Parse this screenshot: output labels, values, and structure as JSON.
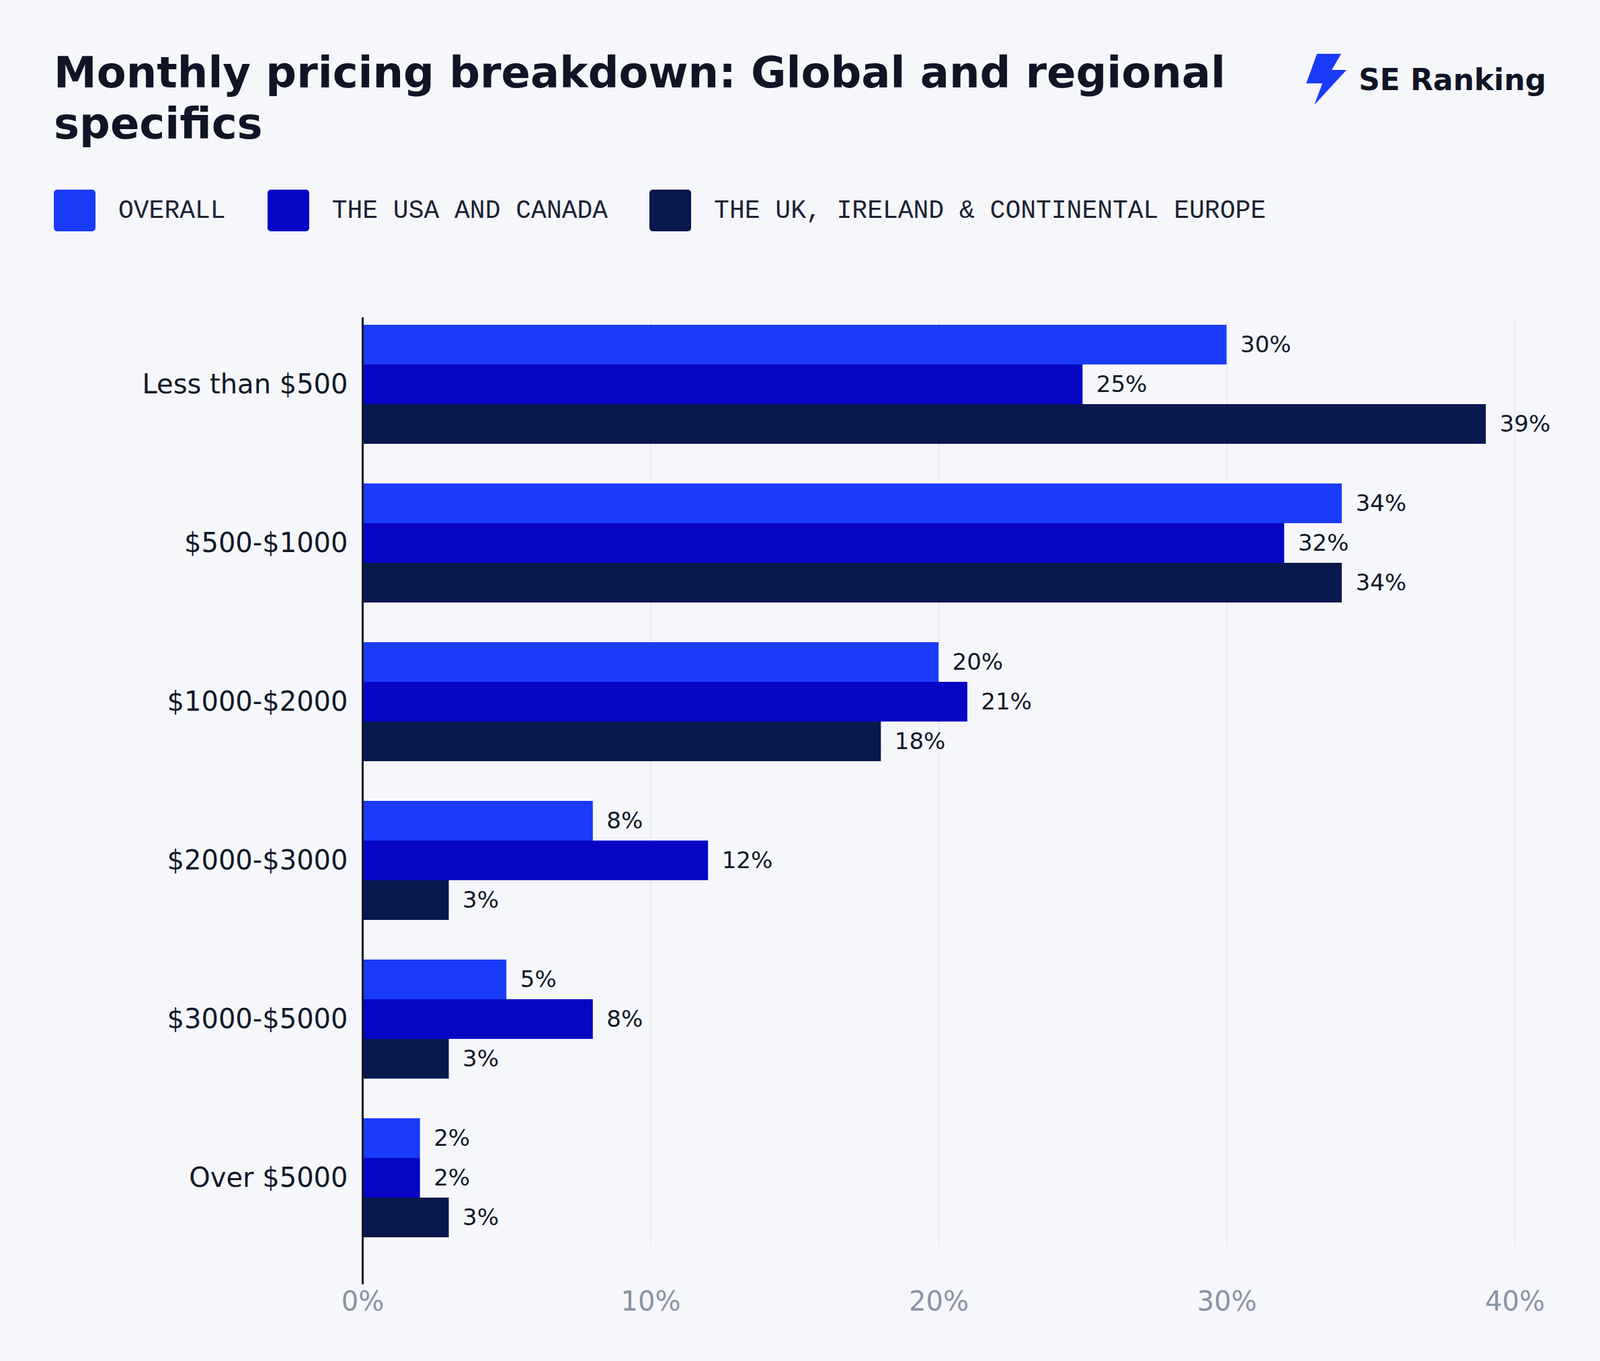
{
  "chart_data": {
    "type": "bar",
    "orientation": "horizontal",
    "title": "Monthly pricing breakdown: Global and regional specifics",
    "annotations": [
      "SE Ranking"
    ],
    "categories": [
      "Less than $500",
      "$500-$1000",
      "$1000-$2000",
      "$2000-$3000",
      "$3000-$5000",
      "Over $5000"
    ],
    "series": [
      {
        "name": "OVERALL",
        "color": "#1a3bfa",
        "values": [
          30,
          34,
          20,
          8,
          5,
          2
        ],
        "value_labels": [
          "30%",
          "34%",
          "20%",
          "8%",
          "5%",
          "2%"
        ]
      },
      {
        "name": "THE USA AND CANADA",
        "color": "#0606c4",
        "values": [
          25,
          32,
          21,
          12,
          8,
          2
        ],
        "value_labels": [
          "25%",
          "32%",
          "21%",
          "12%",
          "8%",
          "2%"
        ]
      },
      {
        "name": "THE UK, IRELAND & CONTINENTAL EUROPE",
        "color": "#08184d",
        "values": [
          39,
          34,
          18,
          3,
          3,
          3
        ],
        "value_labels": [
          "39%",
          "34%",
          "18%",
          "3%",
          "3%",
          "3%"
        ]
      }
    ],
    "xlim": [
      0,
      40
    ],
    "xticks": [
      {
        "value": 0,
        "label": "0%"
      },
      {
        "value": 10,
        "label": "10%"
      },
      {
        "value": 20,
        "label": "20%"
      },
      {
        "value": 30,
        "label": "30%"
      },
      {
        "value": 40,
        "label": "40%"
      }
    ],
    "grid": true,
    "data_labels": true,
    "legend": "top-left"
  }
}
